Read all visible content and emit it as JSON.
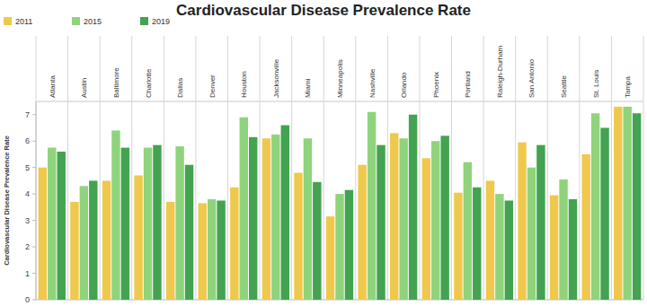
{
  "chart_data": {
    "type": "bar",
    "title": "Cardiovascular Disease Prevalence Rate",
    "y_label": "Cardiovascular Disease Prevalence Rate",
    "categories": [
      "Atlanta",
      "Austin",
      "Baltimore",
      "Charlotte",
      "Dallas",
      "Denver",
      "Houston",
      "Jacksonville",
      "Miami",
      "Minneapolis",
      "Nashville",
      "Orlando",
      "Phoenix",
      "Portland",
      "Raleigh-Durham",
      "San Antonio",
      "Seattle",
      "St. Louis",
      "Tampa"
    ],
    "series": [
      {
        "name": "2011",
        "color": "#efc94c",
        "values": [
          5.0,
          3.7,
          4.5,
          4.7,
          3.7,
          3.65,
          4.25,
          6.1,
          4.8,
          3.15,
          5.1,
          6.3,
          5.35,
          4.05,
          4.5,
          5.95,
          3.95,
          5.5,
          7.3
        ]
      },
      {
        "name": "2015",
        "color": "#8fd47c",
        "values": [
          5.75,
          4.3,
          6.4,
          5.75,
          5.8,
          3.8,
          6.9,
          6.25,
          6.1,
          4.0,
          7.1,
          6.1,
          6.0,
          5.2,
          4.0,
          5.0,
          4.55,
          7.05,
          7.3
        ]
      },
      {
        "name": "2019",
        "color": "#43a350",
        "values": [
          5.6,
          4.5,
          5.75,
          5.85,
          5.1,
          3.75,
          6.15,
          6.6,
          4.45,
          4.15,
          5.85,
          7.0,
          6.2,
          4.25,
          3.75,
          5.85,
          3.8,
          6.5,
          7.05
        ]
      }
    ],
    "ylim": [
      0,
      7.5
    ],
    "yticks": [
      0,
      1,
      2,
      3,
      4,
      5,
      6,
      7
    ],
    "grid": false,
    "legend": "top-left"
  }
}
